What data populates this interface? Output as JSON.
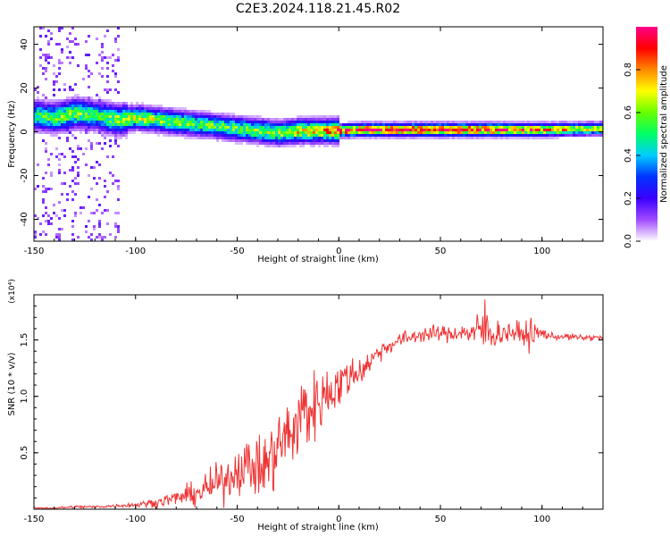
{
  "title": "C2E3.2024.118.21.45.R02",
  "chart_data": [
    {
      "type": "heatmap",
      "xlabel": "Height of straight line (km)",
      "ylabel": "Frequency (Hz)",
      "xlim": [
        -150,
        130
      ],
      "ylim": [
        -50,
        48
      ],
      "x_ticks": [
        -150,
        -100,
        -50,
        0,
        50,
        100
      ],
      "y_ticks": [
        -40,
        -20,
        0,
        20,
        40
      ],
      "colorbar": {
        "label": "Normalized spectral amplitude",
        "range": [
          0,
          1
        ],
        "ticks": [
          "0.0",
          "0.2",
          "0.4",
          "0.6",
          "0.8"
        ],
        "colors": [
          "#ffffff",
          "#a04bff",
          "#3a00ff",
          "#0033ff",
          "#00ccff",
          "#00ff66",
          "#66ff00",
          "#ffff00",
          "#ff8800",
          "#ff0000",
          "#ff0088"
        ]
      },
      "ridge": {
        "x": [
          -150,
          -140,
          -130,
          -120,
          -110,
          -100,
          -90,
          -80,
          -70,
          -60,
          -50,
          -40,
          -30,
          -20,
          -10,
          0,
          10,
          20,
          40,
          60,
          80,
          100,
          130
        ],
        "frequency": [
          8,
          7,
          9,
          8,
          6,
          7,
          6,
          5,
          4,
          3,
          2,
          1,
          0,
          1,
          1,
          1,
          1.5,
          1.5,
          1.5,
          1.5,
          1.5,
          1.5,
          2
        ],
        "peak_amplitude": [
          0.5,
          0.55,
          0.6,
          0.5,
          0.6,
          0.65,
          0.6,
          0.6,
          0.55,
          0.55,
          0.55,
          0.6,
          0.6,
          0.7,
          0.7,
          0.85,
          0.9,
          0.9,
          0.95,
          0.95,
          0.9,
          0.8,
          0.6
        ]
      }
    },
    {
      "type": "line",
      "xlabel": "Height of straight line (km)",
      "ylabel": "SNR (10 * v/v)",
      "scale_label": "(x10⁴)",
      "xlim": [
        -150,
        130
      ],
      "ylim": [
        0,
        1.9
      ],
      "x_ticks": [
        -150,
        -100,
        -50,
        0,
        50,
        100
      ],
      "y_ticks": [
        "0.5",
        "1.0",
        "1.5"
      ],
      "color": "#ee3333",
      "series": [
        {
          "x": [
            -150,
            -140,
            -130,
            -120,
            -110,
            -100,
            -95,
            -90,
            -85,
            -80,
            -75,
            -70,
            -65,
            -60,
            -55,
            -50,
            -45,
            -40,
            -35,
            -30,
            -25,
            -20,
            -17,
            -15,
            -10,
            -5,
            0,
            5,
            10,
            15,
            20,
            25,
            30,
            35,
            40,
            45,
            50,
            55,
            60,
            65,
            70,
            72,
            75,
            80,
            85,
            90,
            95,
            100,
            105,
            110,
            120,
            130
          ],
          "y": [
            0.01,
            0.01,
            0.02,
            0.02,
            0.03,
            0.04,
            0.05,
            0.06,
            0.08,
            0.1,
            0.12,
            0.14,
            0.18,
            0.22,
            0.28,
            0.35,
            0.4,
            0.35,
            0.4,
            0.55,
            0.65,
            0.75,
            0.9,
            0.85,
            0.95,
            1.05,
            1.1,
            1.18,
            1.22,
            1.3,
            1.4,
            1.45,
            1.5,
            1.52,
            1.55,
            1.55,
            1.56,
            1.55,
            1.57,
            1.56,
            1.58,
            1.62,
            1.55,
            1.56,
            1.57,
            1.55,
            1.55,
            1.56,
            1.53,
            1.53,
            1.52,
            1.52
          ],
          "spread": [
            0.005,
            0.005,
            0.01,
            0.01,
            0.01,
            0.02,
            0.02,
            0.03,
            0.04,
            0.05,
            0.06,
            0.08,
            0.1,
            0.12,
            0.14,
            0.15,
            0.16,
            0.2,
            0.22,
            0.25,
            0.25,
            0.25,
            0.3,
            0.25,
            0.2,
            0.18,
            0.16,
            0.12,
            0.1,
            0.08,
            0.06,
            0.05,
            0.05,
            0.05,
            0.05,
            0.05,
            0.05,
            0.05,
            0.05,
            0.08,
            0.15,
            0.2,
            0.1,
            0.08,
            0.06,
            0.08,
            0.1,
            0.04,
            0.02,
            0.02,
            0.02,
            0.02
          ]
        }
      ]
    }
  ]
}
